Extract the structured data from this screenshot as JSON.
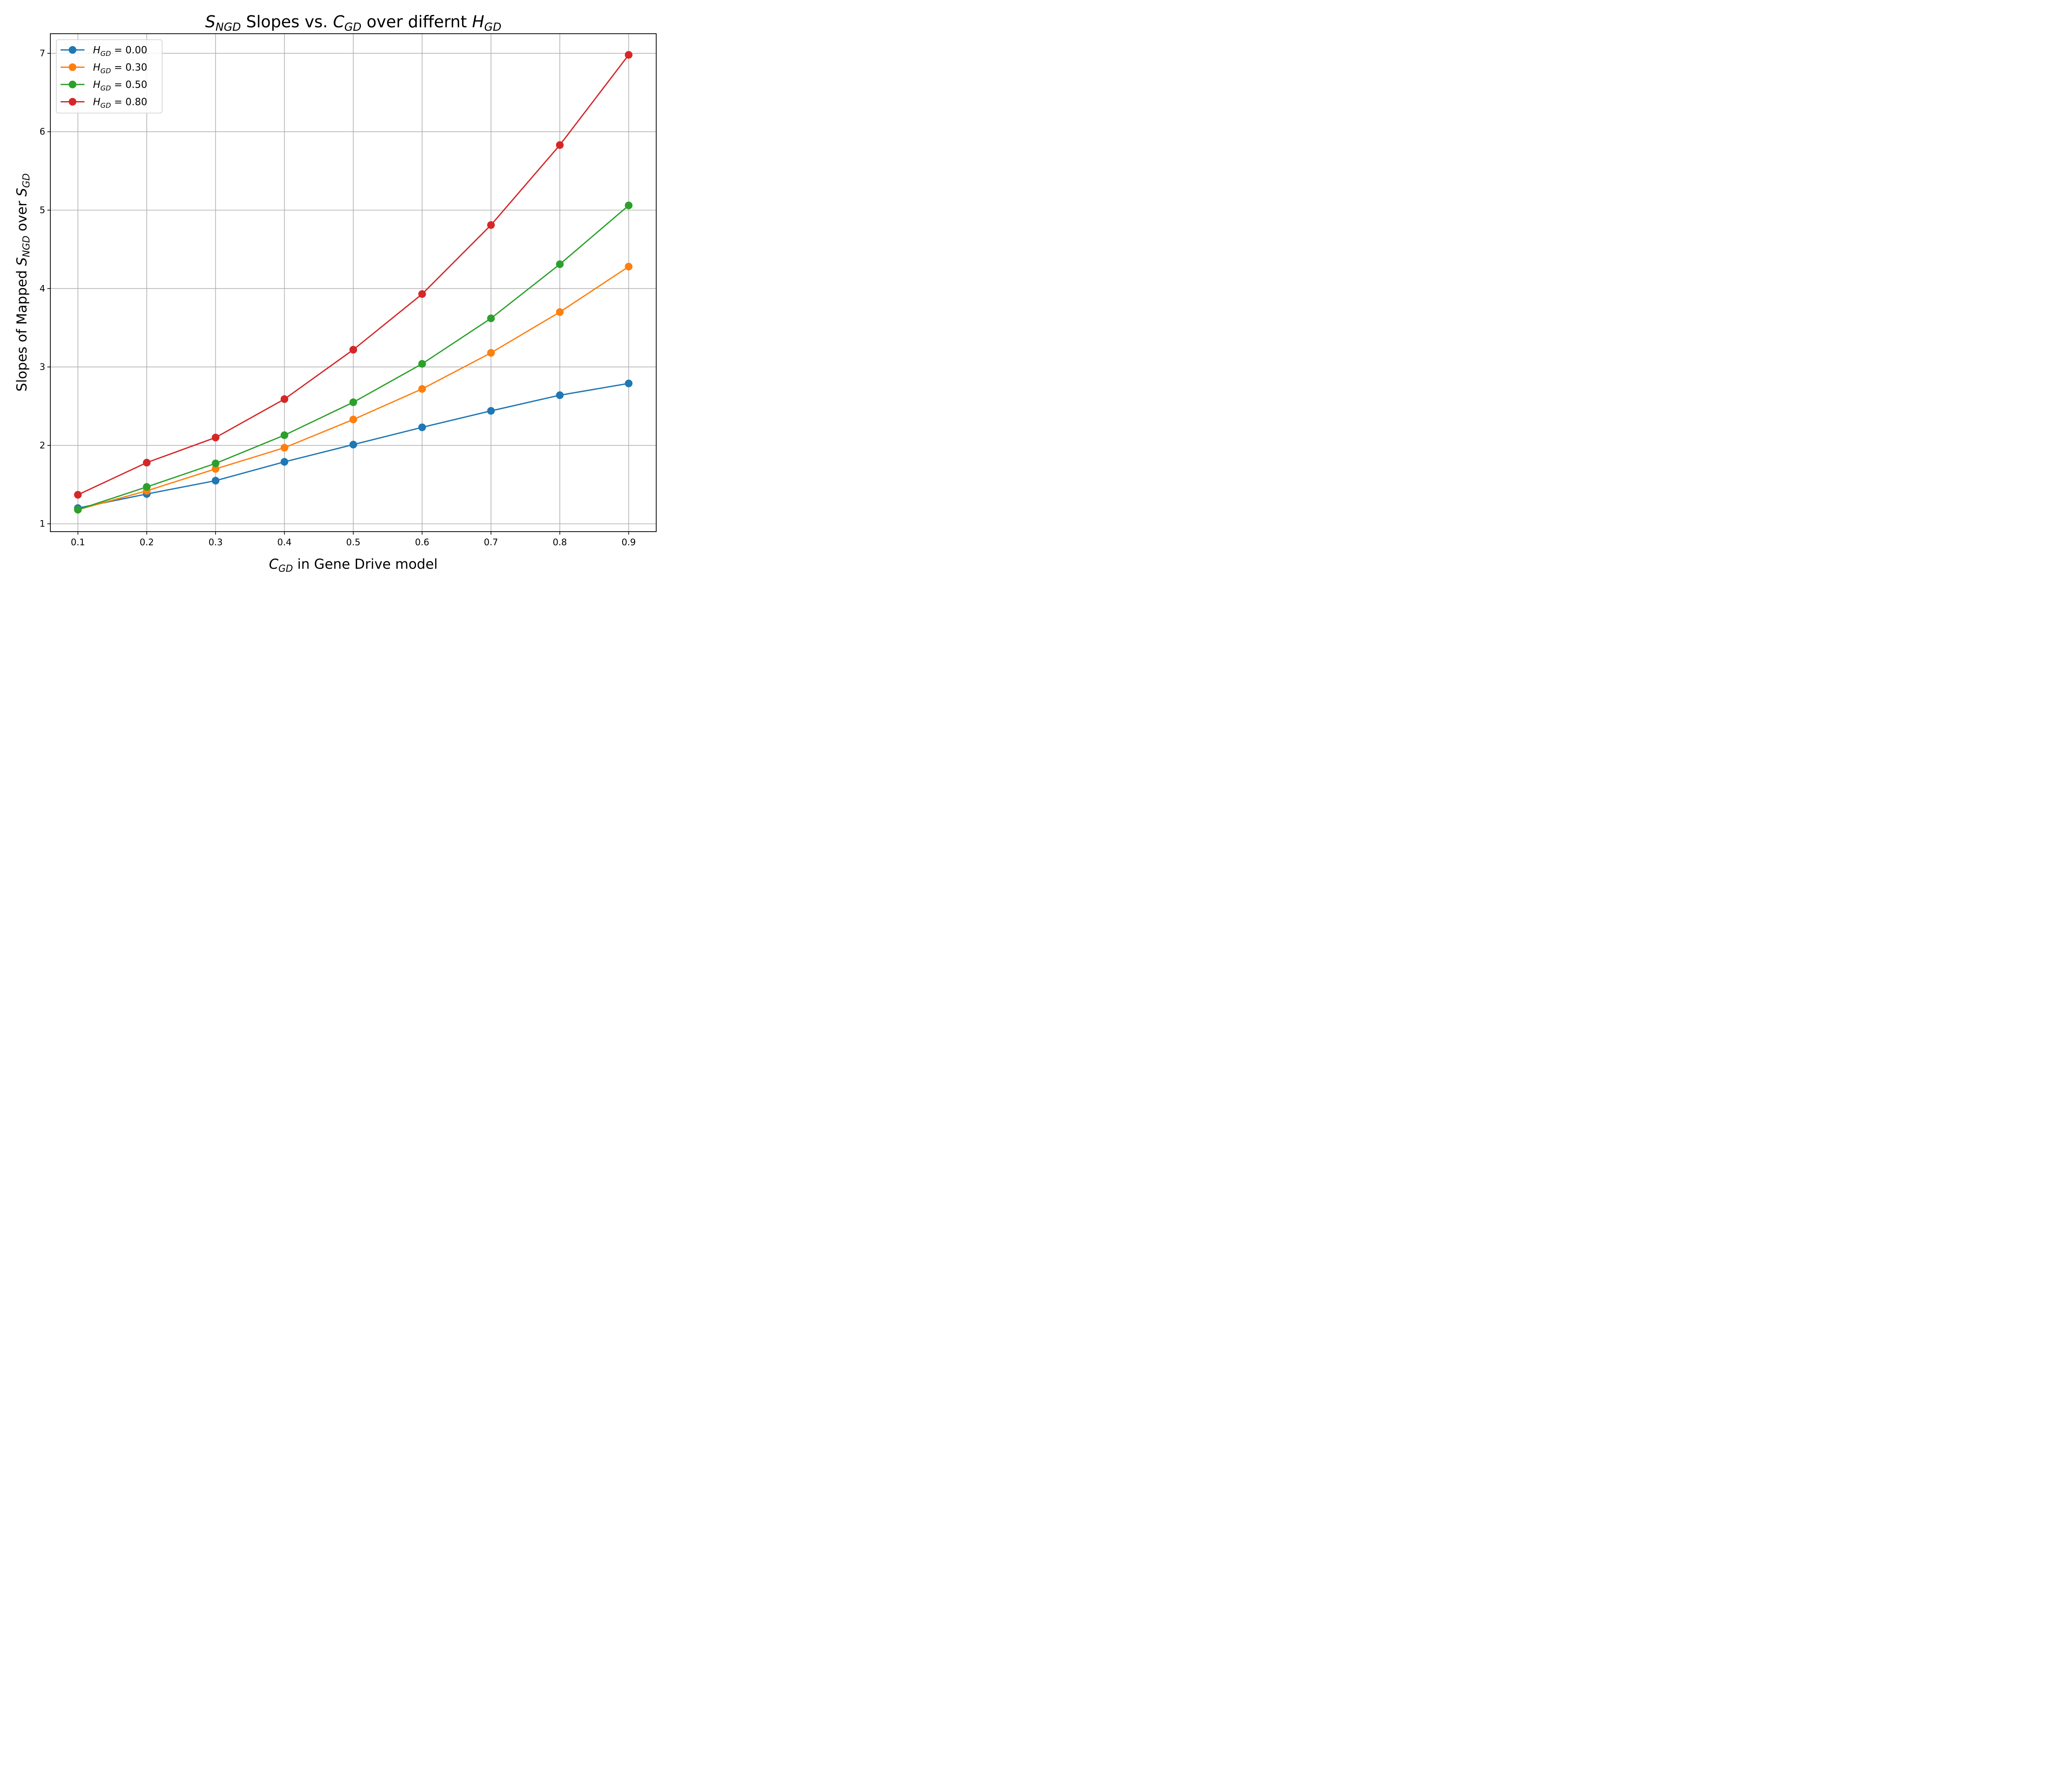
{
  "chart_data": {
    "type": "line",
    "title": {
      "base": "S",
      "sub": "NGD",
      "mid1": " Slopes vs. ",
      "base2": "C",
      "sub2": "GD",
      "mid2": " over differnt ",
      "base3": "H",
      "sub3": "GD"
    },
    "xlabel": {
      "base": "C",
      "sub": "GD",
      "rest": " in Gene Drive model"
    },
    "ylabel": {
      "prefix": "Slopes of Mapped ",
      "base": "S",
      "sub": "NGD",
      "middle": " over ",
      "base2": "S",
      "sub2": "GD"
    },
    "x": [
      0.1,
      0.2,
      0.3,
      0.4,
      0.5,
      0.6,
      0.7,
      0.8,
      0.9
    ],
    "xticks": [
      "0.1",
      "0.2",
      "0.3",
      "0.4",
      "0.5",
      "0.6",
      "0.7",
      "0.8",
      "0.9"
    ],
    "yticks": [
      "1",
      "2",
      "3",
      "4",
      "5",
      "6",
      "7"
    ],
    "xlim": [
      0.06,
      0.94
    ],
    "ylim": [
      0.9,
      7.25
    ],
    "grid": true,
    "legend_position": "top-left",
    "series": [
      {
        "name": "H_GD = 0.00",
        "legend_base": "H",
        "legend_sub": "GD",
        "legend_value": " = 0.00",
        "color": "#1f77b4",
        "values": [
          1.2,
          1.38,
          1.55,
          1.79,
          2.01,
          2.23,
          2.44,
          2.64,
          2.79
        ]
      },
      {
        "name": "H_GD = 0.30",
        "legend_base": "H",
        "legend_sub": "GD",
        "legend_value": " = 0.30",
        "color": "#ff7f0e",
        "values": [
          1.18,
          1.42,
          1.7,
          1.97,
          2.33,
          2.72,
          3.18,
          3.7,
          4.28
        ]
      },
      {
        "name": "H_GD = 0.50",
        "legend_base": "H",
        "legend_sub": "GD",
        "legend_value": " = 0.50",
        "color": "#2ca02c",
        "values": [
          1.18,
          1.47,
          1.77,
          2.13,
          2.55,
          3.04,
          3.62,
          4.31,
          5.06
        ]
      },
      {
        "name": "H_GD = 0.80",
        "legend_base": "H",
        "legend_sub": "GD",
        "legend_value": " = 0.80",
        "color": "#d62728",
        "values": [
          1.37,
          1.78,
          2.1,
          2.59,
          3.22,
          3.93,
          4.81,
          5.83,
          6.98
        ]
      }
    ]
  }
}
